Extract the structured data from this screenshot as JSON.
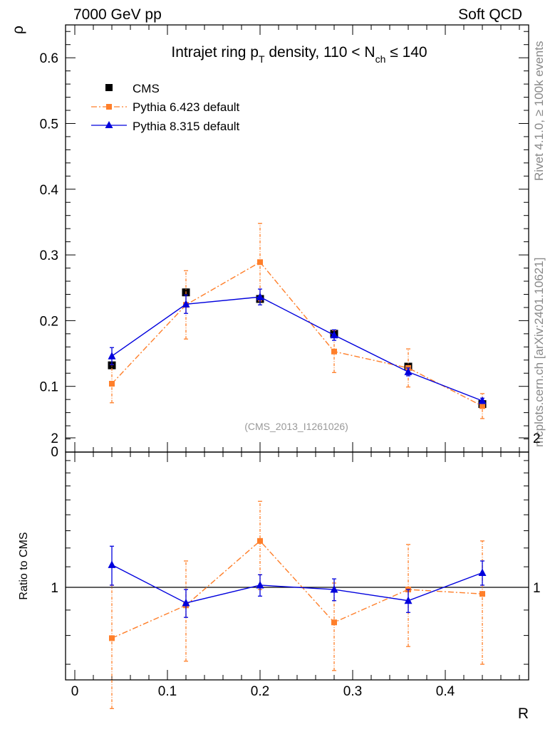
{
  "header": {
    "left": "7000 GeV pp",
    "right": "Soft QCD"
  },
  "side_labels": {
    "rivet": "Rivet 4.1.0, ≥ 100k events",
    "mcplots": "mcplots.cern.ch [arXiv:2401.10621]"
  },
  "watermark": "(CMS_2013_I1261026)",
  "colors": {
    "cms": "#000000",
    "pythia6": "#ff7f2a",
    "pythia8": "#0000dd"
  },
  "chart_data": [
    {
      "type": "scatter",
      "title": "Intrajet ring pT density, 110 < Nch ≤ 140",
      "title_parts": {
        "pre": "Intrajet ring p",
        "sub1": "T",
        "mid": " density, 110 < N",
        "sub2": "ch",
        "post": " ≤ 140"
      },
      "xlabel": "R",
      "ylabel": "ρ",
      "xlim": [
        -0.01,
        0.49
      ],
      "ylim": [
        0,
        0.65
      ],
      "yticks": [
        0.1,
        0.2,
        0.3,
        0.4,
        0.5,
        0.6
      ],
      "ytick_labels": [
        "0.1",
        "0.2",
        "0.3",
        "0.4",
        "0.5",
        "0.6"
      ],
      "y_zero_label": "0",
      "legend_position": "top-left",
      "x": [
        0.04,
        0.12,
        0.2,
        0.28,
        0.36,
        0.44
      ],
      "series": [
        {
          "name": "CMS",
          "style": "marker",
          "color": "#000000",
          "values": [
            0.132,
            0.243,
            0.233,
            0.18,
            0.13,
            0.073
          ],
          "errors": [
            0.004,
            0.005,
            0.005,
            0.004,
            0.003,
            0.002
          ]
        },
        {
          "name": "Pythia 6.423 default",
          "style": "dashdot",
          "color": "#ff7f2a",
          "values": [
            0.104,
            0.224,
            0.289,
            0.153,
            0.128,
            0.07
          ],
          "errors": [
            0.029,
            0.052,
            0.059,
            0.032,
            0.029,
            0.019
          ]
        },
        {
          "name": "Pythia 8.315 default",
          "style": "solid",
          "color": "#0000dd",
          "values": [
            0.146,
            0.225,
            0.236,
            0.178,
            0.122,
            0.078
          ],
          "errors": [
            0.013,
            0.014,
            0.012,
            0.008,
            0.006,
            0.004
          ]
        }
      ]
    },
    {
      "type": "scatter",
      "title": "",
      "xlabel": "R",
      "ylabel": "Ratio to CMS",
      "xlim": [
        -0.01,
        0.49
      ],
      "ylim": [
        0.5,
        2.0
      ],
      "yscale": "log",
      "reference_line": 1,
      "yticks": [
        0.5,
        1,
        2
      ],
      "ytick_labels": [
        "0.5",
        "1",
        "2"
      ],
      "xticks": [
        0,
        0.1,
        0.2,
        0.3,
        0.4
      ],
      "xtick_labels": [
        "0",
        "0.1",
        "0.2",
        "0.3",
        "0.4"
      ],
      "x": [
        0.04,
        0.12,
        0.2,
        0.28,
        0.36,
        0.44
      ],
      "series": [
        {
          "name": "Pythia 6.423 default",
          "color": "#ff7f2a",
          "values": [
            0.79,
            0.92,
            1.24,
            0.85,
            0.99,
            0.97
          ],
          "errors": [
            0.22,
            0.21,
            0.25,
            0.17,
            0.23,
            0.27
          ]
        },
        {
          "name": "Pythia 8.315 default",
          "color": "#0000dd",
          "values": [
            1.11,
            0.93,
            1.01,
            0.99,
            0.94,
            1.07
          ],
          "errors": [
            0.1,
            0.06,
            0.05,
            0.05,
            0.05,
            0.06
          ]
        }
      ]
    }
  ]
}
